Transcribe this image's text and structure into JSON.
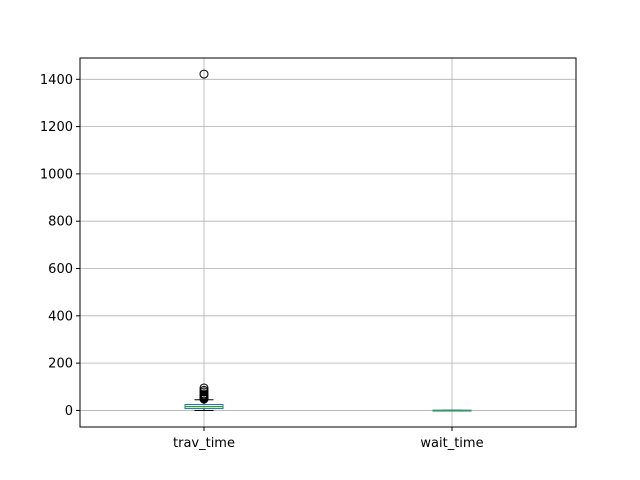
{
  "chart_data": {
    "type": "box",
    "title": "",
    "xlabel": "",
    "ylabel": "",
    "ylim": [
      -70,
      1490
    ],
    "yticks": [
      0,
      200,
      400,
      600,
      800,
      1000,
      1200,
      1400
    ],
    "grid": true,
    "categories": [
      "trav_time",
      "wait_time"
    ],
    "boxes": [
      {
        "name": "trav_time",
        "whisker_low": 0,
        "q1": 8,
        "median": 16,
        "q3": 25,
        "whisker_high": 45,
        "outliers": [
          48,
          52,
          55,
          58,
          61,
          65,
          70,
          78,
          85,
          95,
          1422
        ]
      },
      {
        "name": "wait_time",
        "whisker_low": 0,
        "q1": 0,
        "median": 0,
        "q3": 1,
        "whisker_high": 1,
        "outliers": []
      }
    ],
    "colors": {
      "box": "#1f77b4",
      "median": "#2ca02c",
      "whisker": "#000000",
      "outlier": "#000000",
      "grid": "#b0b0b0"
    }
  }
}
